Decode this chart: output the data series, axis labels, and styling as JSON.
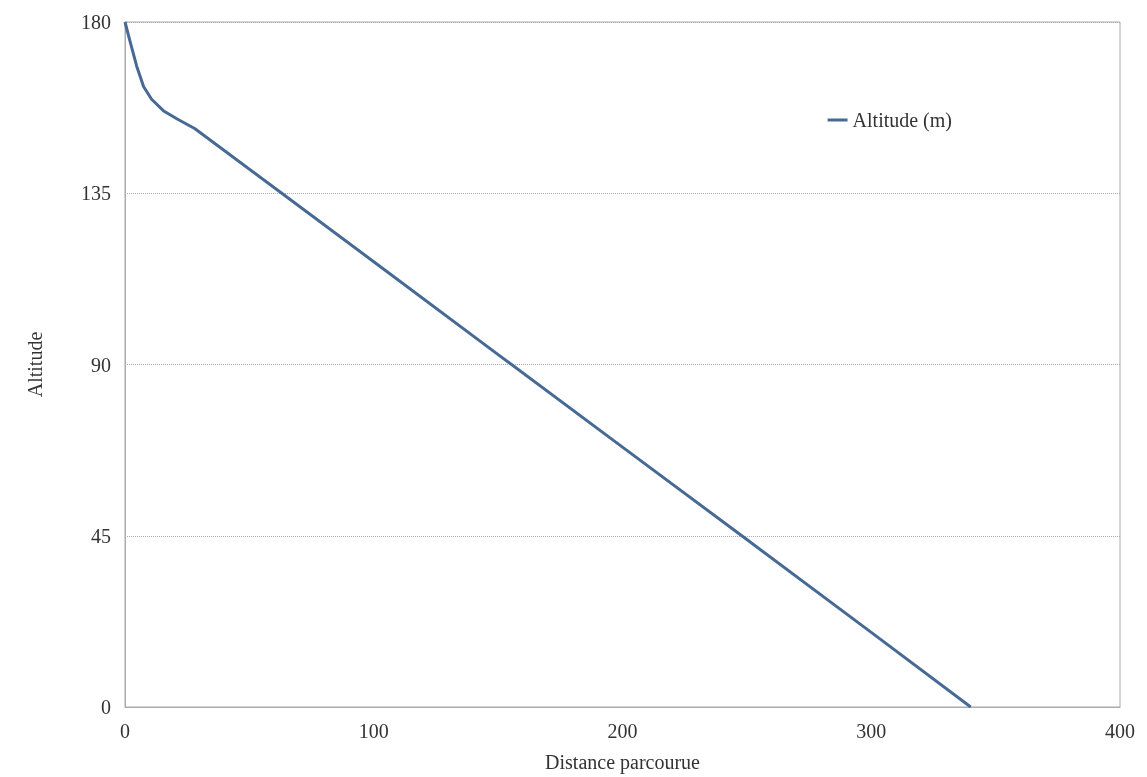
{
  "chart_data": {
    "type": "line",
    "xlabel": "Distance parcourue",
    "ylabel": "Altitude",
    "series": [
      {
        "name": "Altitude (m)",
        "color": "#466a94",
        "x": [
          0,
          2,
          4.7,
          7.5,
          10.7,
          15.4,
          21,
          28,
          61,
          100,
          150,
          200,
          250,
          300,
          340
        ],
        "values": [
          180,
          175,
          168.4,
          163,
          159.7,
          156.7,
          154.5,
          152,
          136,
          117,
          92.6,
          68.3,
          44,
          19.6,
          0
        ]
      }
    ],
    "xlim": [
      0,
      400
    ],
    "xticks": [
      0,
      100,
      200,
      300,
      400
    ],
    "ylim": [
      0,
      180
    ],
    "yticks": [
      0,
      45,
      90,
      135,
      180
    ],
    "grid": "y",
    "legend": "top right",
    "marker": "none",
    "line_style": "solid"
  }
}
